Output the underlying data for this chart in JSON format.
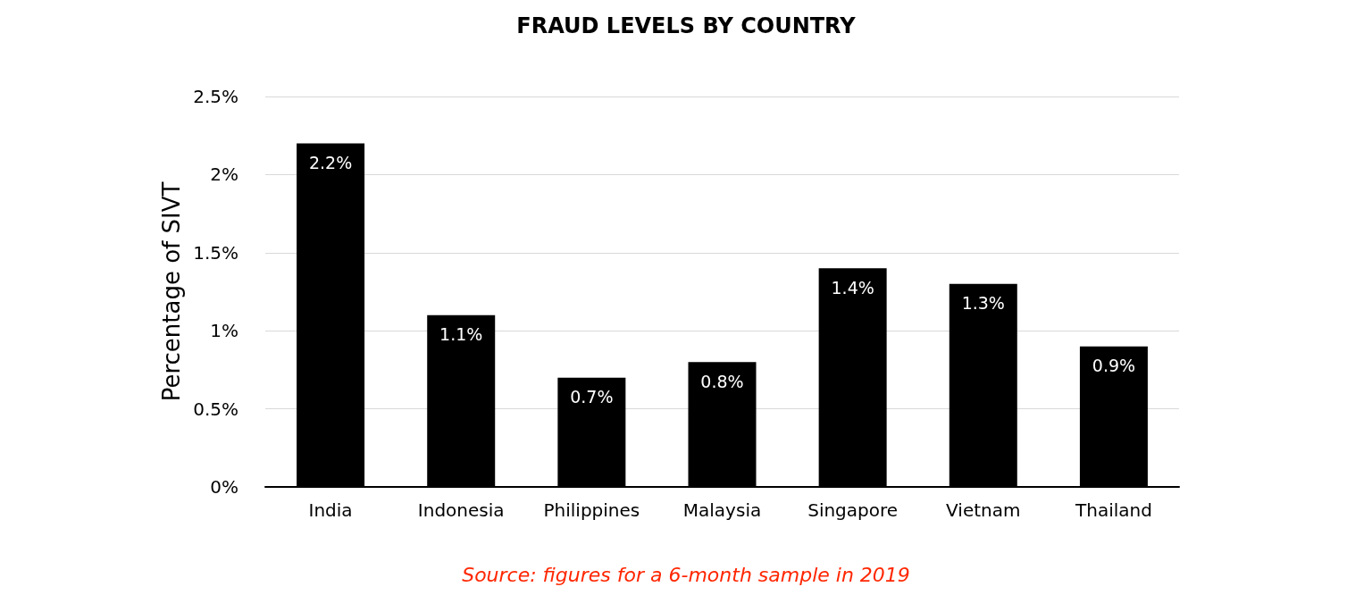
{
  "chart_data": {
    "type": "bar",
    "title": "FRAUD LEVELS BY COUNTRY",
    "ylabel": "Percentage of SIVT",
    "categories": [
      "India",
      "Indonesia",
      "Philippines",
      "Malaysia",
      "Singapore",
      "Vietnam",
      "Thailand"
    ],
    "values": [
      2.2,
      1.1,
      0.7,
      0.8,
      1.4,
      1.3,
      0.9
    ],
    "value_labels": [
      "2.2%",
      "1.1%",
      "0.7%",
      "0.8%",
      "1.4%",
      "1.3%",
      "0.9%"
    ],
    "color": "#000000",
    "ylim": [
      0,
      2.5
    ],
    "yticks": [
      {
        "value": 0,
        "label": "0%"
      },
      {
        "value": 0.5,
        "label": "0.5%"
      },
      {
        "value": 1,
        "label": "1%"
      },
      {
        "value": 1.5,
        "label": "1.5%"
      },
      {
        "value": 2,
        "label": "2%"
      },
      {
        "value": 2.5,
        "label": "2.5%"
      }
    ],
    "grid": "y",
    "annotations": [
      "Source: figures for a 6-month sample in 2019"
    ]
  }
}
